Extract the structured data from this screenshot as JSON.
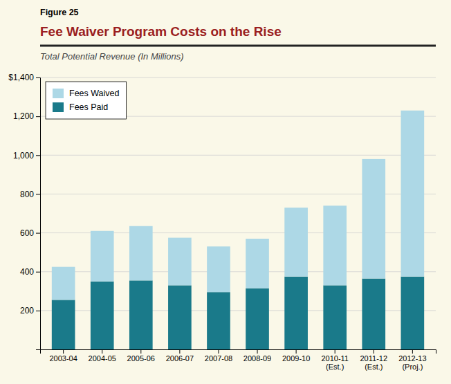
{
  "chart_data": {
    "type": "bar",
    "stacked": true,
    "annotations": [
      "Figure 25"
    ],
    "title": "Fee Waiver Program Costs on the Rise",
    "subtitle": "Total Potential Revenue (In Millions)",
    "categories": [
      "2003-04",
      "2004-05",
      "2005-06",
      "2006-07",
      "2007-08",
      "2008-09",
      "2009-10",
      "2010-11\n(Est.)",
      "2011-12\n(Est.)",
      "2012-13\n(Proj.)"
    ],
    "series": [
      {
        "name": "Fees Paid",
        "color": "#1a7a8a",
        "values": [
          255,
          350,
          355,
          330,
          295,
          315,
          375,
          330,
          365,
          375
        ]
      },
      {
        "name": "Fees Waived",
        "color": "#add8e6",
        "values": [
          170,
          260,
          280,
          245,
          235,
          255,
          355,
          410,
          615,
          855
        ]
      }
    ],
    "ylim": [
      0,
      1400
    ],
    "yticks": [
      200,
      400,
      600,
      800,
      {
        "value": 1000,
        "label": "1,000"
      },
      {
        "value": 1200,
        "label": "1,200"
      },
      {
        "value": 1400,
        "label": "$1,400"
      }
    ],
    "grid": true,
    "legend": "upper left"
  }
}
